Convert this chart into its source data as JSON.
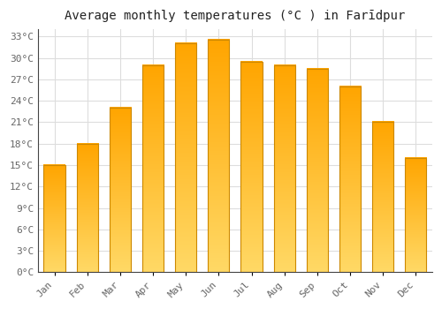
{
  "months": [
    "Jan",
    "Feb",
    "Mar",
    "Apr",
    "May",
    "Jun",
    "Jul",
    "Aug",
    "Sep",
    "Oct",
    "Nov",
    "Dec"
  ],
  "temperatures": [
    15,
    18,
    23,
    29,
    32,
    32.5,
    29.5,
    29,
    28.5,
    26,
    21,
    16
  ],
  "bar_color_top": "#FFA500",
  "bar_color_bottom": "#FFD966",
  "bar_edge_color": "#CC8800",
  "title": "Average monthly temperatures (°C ) in Farīdpur",
  "ylim": [
    0,
    34
  ],
  "yticks": [
    0,
    3,
    6,
    9,
    12,
    15,
    18,
    21,
    24,
    27,
    30,
    33
  ],
  "ylabel_suffix": "°C",
  "background_color": "#ffffff",
  "grid_color": "#dddddd",
  "title_fontsize": 10,
  "tick_fontsize": 8,
  "font_family": "monospace"
}
